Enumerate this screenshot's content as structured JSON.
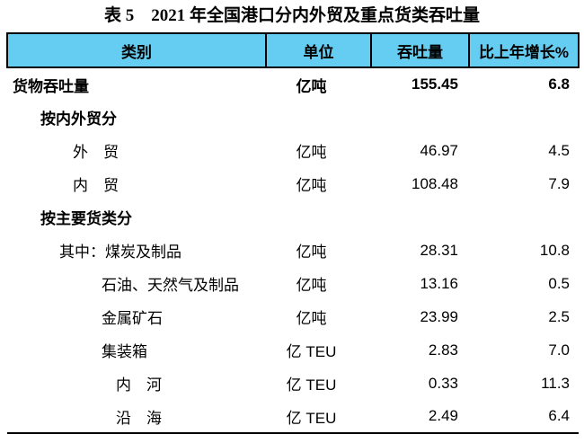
{
  "title": "表 5　2021 年全国港口分内外贸及重点货类吞吐量",
  "colors": {
    "header_bg": "#66cdf2",
    "line": "#000000",
    "text": "#000000",
    "page_bg": "#ffffff"
  },
  "table": {
    "header": {
      "category": "类别",
      "unit": "单位",
      "throughput": "吞吐量",
      "growth": "比上年增长%"
    },
    "rows": [
      {
        "label": "货物吞吐量",
        "unit": "亿吨",
        "value": "155.45",
        "growth": "6.8",
        "bold": true,
        "indent": 0
      },
      {
        "label": "按内外贸分",
        "unit": "",
        "value": "",
        "growth": "",
        "bold": true,
        "indent": 1
      },
      {
        "label": "外　贸",
        "unit": "亿吨",
        "value": "46.97",
        "growth": "4.5",
        "bold": false,
        "indent": 2
      },
      {
        "label": "内　贸",
        "unit": "亿吨",
        "value": "108.48",
        "growth": "7.9",
        "bold": false,
        "indent": 2
      },
      {
        "label": "按主要货类分",
        "unit": "",
        "value": "",
        "growth": "",
        "bold": true,
        "indent": 1
      },
      {
        "label": "其中：煤炭及制品",
        "unit": "亿吨",
        "value": "28.31",
        "growth": "10.8",
        "bold": false,
        "indent": 3
      },
      {
        "label": "石油、天然气及制品",
        "unit": "亿吨",
        "value": "13.16",
        "growth": "0.5",
        "bold": false,
        "indent": 4
      },
      {
        "label": "金属矿石",
        "unit": "亿吨",
        "value": "23.99",
        "growth": "2.5",
        "bold": false,
        "indent": 4
      },
      {
        "label": "集装箱",
        "unit": "亿 TEU",
        "value": "2.83",
        "growth": "7.0",
        "bold": false,
        "indent": 4
      },
      {
        "label": "内　河",
        "unit": "亿 TEU",
        "value": "0.33",
        "growth": "11.3",
        "bold": false,
        "indent": 5
      },
      {
        "label": "沿　海",
        "unit": "亿 TEU",
        "value": "2.49",
        "growth": "6.4",
        "bold": false,
        "indent": 5
      }
    ]
  }
}
